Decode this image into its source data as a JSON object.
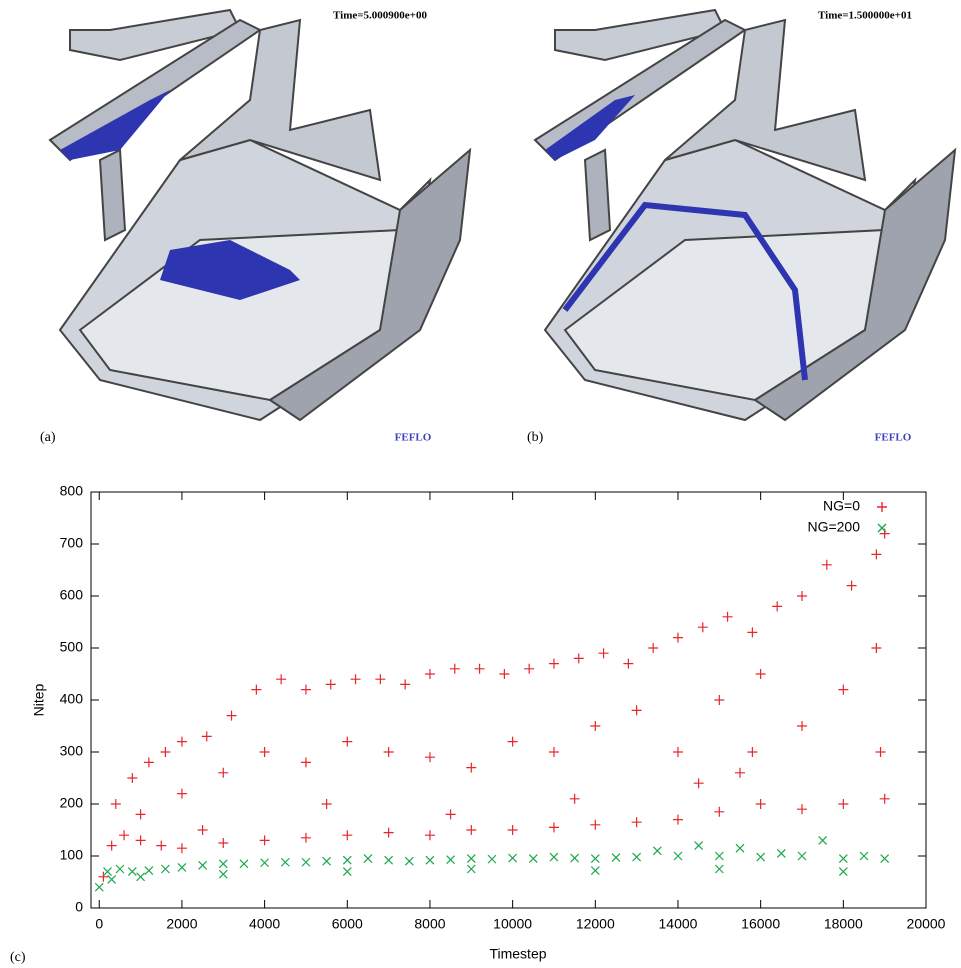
{
  "panels": [
    {
      "label": "(a)",
      "time": "Time=5.000900e+00",
      "brand": "FEFLO"
    },
    {
      "label": "(b)",
      "time": "Time=1.500000e+01",
      "brand": "FEFLO"
    }
  ],
  "chart_data": {
    "type": "scatter",
    "panel_label": "(c)",
    "xlabel": "Timestep",
    "ylabel": "Nitep",
    "xlim": [
      -200,
      20000
    ],
    "ylim": [
      0,
      800
    ],
    "xticks": [
      0,
      2000,
      4000,
      6000,
      8000,
      10000,
      12000,
      14000,
      16000,
      18000,
      20000
    ],
    "yticks": [
      0,
      100,
      200,
      300,
      400,
      500,
      600,
      700,
      800
    ],
    "legend": "upper right",
    "series": [
      {
        "name": "NG=0",
        "color": "#e8262a",
        "marker": "plus",
        "x": [
          400,
          800,
          1200,
          1600,
          2000,
          2600,
          3200,
          3800,
          4400,
          5000,
          5600,
          6200,
          6800,
          7400,
          8000,
          8600,
          9200,
          9800,
          10400,
          11000,
          11600,
          12200,
          12800,
          13400,
          14000,
          14600,
          15200,
          15800,
          16400,
          17000,
          17600,
          18200,
          18800,
          19000,
          1000,
          2000,
          3000,
          4000,
          5000,
          6000,
          7000,
          8000,
          9000,
          10000,
          11000,
          12000,
          13000,
          14000,
          15000,
          16000,
          17000,
          18000,
          18800,
          18900,
          2500,
          5500,
          8500,
          11500,
          14500,
          15800,
          100,
          300,
          600,
          1000,
          1500,
          2000,
          3000,
          4000,
          5000,
          6000,
          7000,
          8000,
          9000,
          10000,
          11000,
          12000,
          13000,
          14000,
          15000,
          16000,
          17000,
          18000,
          19000,
          15500
        ],
        "values": [
          200,
          250,
          280,
          300,
          320,
          330,
          370,
          420,
          440,
          420,
          430,
          440,
          440,
          430,
          450,
          460,
          460,
          450,
          460,
          470,
          480,
          490,
          470,
          500,
          520,
          540,
          560,
          530,
          580,
          600,
          660,
          620,
          680,
          720,
          180,
          220,
          260,
          300,
          280,
          320,
          300,
          290,
          270,
          320,
          300,
          350,
          380,
          300,
          400,
          450,
          350,
          420,
          500,
          300,
          150,
          200,
          180,
          210,
          240,
          300,
          60,
          120,
          140,
          130,
          120,
          115,
          125,
          130,
          135,
          140,
          145,
          140,
          150,
          150,
          155,
          160,
          165,
          170,
          185,
          200,
          190,
          200,
          210,
          260
        ]
      },
      {
        "name": "NG=200",
        "color": "#1aa84b",
        "marker": "cross",
        "x": [
          0,
          200,
          500,
          800,
          1200,
          1600,
          2000,
          2500,
          3000,
          3500,
          4000,
          4500,
          5000,
          5500,
          6000,
          6500,
          7000,
          7500,
          8000,
          8500,
          9000,
          9500,
          10000,
          10500,
          11000,
          11500,
          12000,
          12500,
          13000,
          13500,
          14000,
          14500,
          15000,
          15500,
          16000,
          16500,
          17000,
          17500,
          18000,
          18500,
          19000,
          300,
          1000,
          3000,
          6000,
          9000,
          12000,
          15000,
          18000
        ],
        "values": [
          40,
          70,
          75,
          70,
          72,
          75,
          78,
          82,
          85,
          85,
          87,
          88,
          88,
          90,
          92,
          95,
          92,
          90,
          92,
          93,
          95,
          94,
          96,
          95,
          98,
          96,
          95,
          97,
          98,
          110,
          100,
          120,
          100,
          115,
          98,
          105,
          100,
          130,
          95,
          100,
          95,
          55,
          60,
          65,
          70,
          75,
          72,
          75,
          70
        ]
      }
    ]
  }
}
